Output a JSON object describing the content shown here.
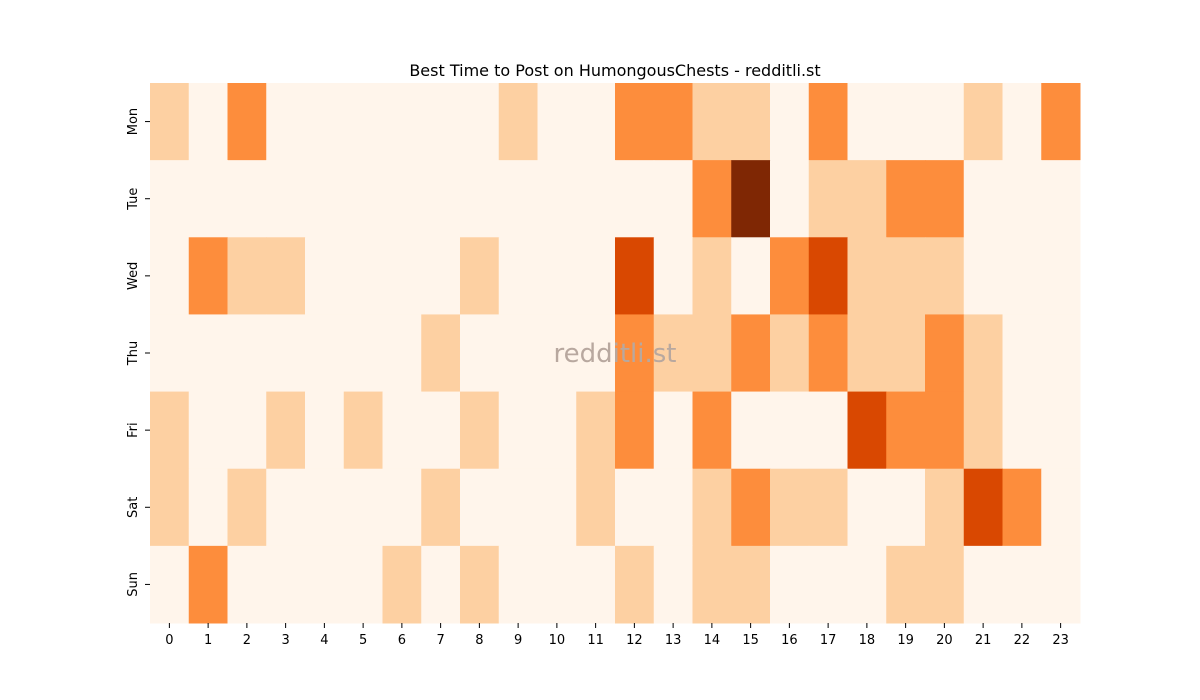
{
  "chart_data": {
    "type": "heatmap",
    "title": "Best Time to Post on HumongousChests - redditli.st",
    "watermark": "redditli.st",
    "x_labels": [
      "0",
      "1",
      "2",
      "3",
      "4",
      "5",
      "6",
      "7",
      "8",
      "9",
      "10",
      "11",
      "12",
      "13",
      "14",
      "15",
      "16",
      "17",
      "18",
      "19",
      "20",
      "21",
      "22",
      "23"
    ],
    "y_labels": [
      "Mon",
      "Tue",
      "Wed",
      "Thu",
      "Fri",
      "Sat",
      "Sun"
    ],
    "colormap": "Oranges",
    "level_colors": [
      "#fff5eb",
      "#fdd0a2",
      "#fd8d3c",
      "#d94801",
      "#7f2704"
    ],
    "values": [
      [
        1,
        0,
        2,
        0,
        0,
        0,
        0,
        0,
        0,
        1,
        0,
        0,
        2,
        2,
        1,
        1,
        0,
        2,
        0,
        0,
        0,
        1,
        0,
        2
      ],
      [
        0,
        0,
        0,
        0,
        0,
        0,
        0,
        0,
        0,
        0,
        0,
        0,
        0,
        0,
        2,
        4,
        0,
        1,
        1,
        2,
        2,
        0,
        0,
        0
      ],
      [
        0,
        2,
        1,
        1,
        0,
        0,
        0,
        0,
        1,
        0,
        0,
        0,
        3,
        0,
        1,
        0,
        2,
        3,
        1,
        1,
        1,
        0,
        0,
        0
      ],
      [
        0,
        0,
        0,
        0,
        0,
        0,
        0,
        1,
        0,
        0,
        0,
        0,
        2,
        1,
        1,
        2,
        1,
        2,
        1,
        1,
        2,
        1,
        0,
        0
      ],
      [
        1,
        0,
        0,
        1,
        0,
        1,
        0,
        0,
        1,
        0,
        0,
        1,
        2,
        0,
        2,
        0,
        0,
        0,
        3,
        2,
        2,
        1,
        0,
        0
      ],
      [
        1,
        0,
        1,
        0,
        0,
        0,
        0,
        1,
        0,
        0,
        0,
        1,
        0,
        0,
        1,
        2,
        1,
        1,
        0,
        0,
        1,
        3,
        2,
        0
      ],
      [
        0,
        2,
        0,
        0,
        0,
        0,
        1,
        0,
        1,
        0,
        0,
        0,
        1,
        0,
        1,
        1,
        0,
        0,
        0,
        1,
        1,
        0,
        0,
        0
      ]
    ]
  }
}
